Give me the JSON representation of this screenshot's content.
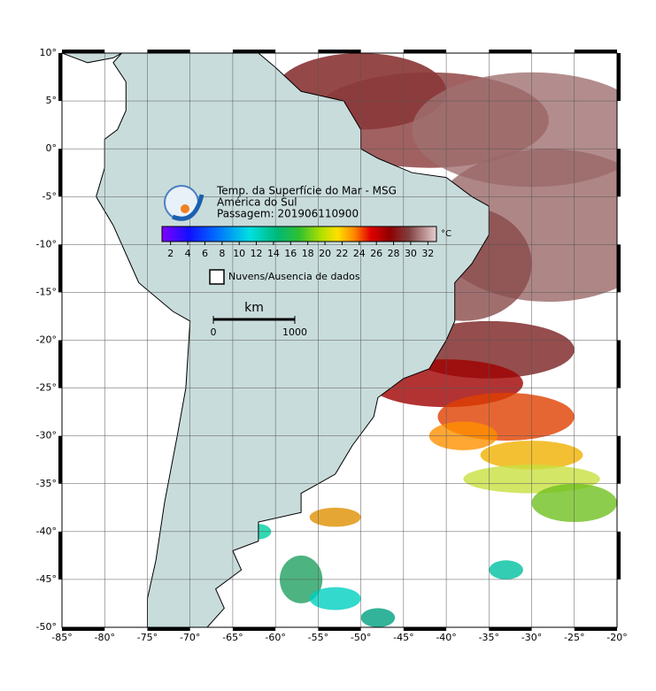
{
  "map": {
    "xlim": [
      -85,
      -20
    ],
    "ylim": [
      -50,
      10
    ],
    "xticks": [
      {
        "value": -85,
        "label": "-85°"
      },
      {
        "value": -80,
        "label": "-80°"
      },
      {
        "value": -75,
        "label": "-75°"
      },
      {
        "value": -70,
        "label": "-70°"
      },
      {
        "value": -65,
        "label": "-65°"
      },
      {
        "value": -60,
        "label": "-60°"
      },
      {
        "value": -55,
        "label": "-55°"
      },
      {
        "value": -50,
        "label": "-50°"
      },
      {
        "value": -45,
        "label": "-45°"
      },
      {
        "value": -40,
        "label": "-40°"
      },
      {
        "value": -35,
        "label": "-35°"
      },
      {
        "value": -30,
        "label": "-30°"
      },
      {
        "value": -25,
        "label": "-25°"
      },
      {
        "value": -20,
        "label": "-20°"
      }
    ],
    "yticks": [
      {
        "value": 10,
        "label": "10°"
      },
      {
        "value": 5,
        "label": "5°"
      },
      {
        "value": 0,
        "label": "0°"
      },
      {
        "value": -5,
        "label": "-5°"
      },
      {
        "value": -10,
        "label": "-10°"
      },
      {
        "value": -15,
        "label": "-15°"
      },
      {
        "value": -20,
        "label": "-20°"
      },
      {
        "value": -25,
        "label": "-25°"
      },
      {
        "value": -30,
        "label": "-30°"
      },
      {
        "value": -35,
        "label": "-35°"
      },
      {
        "value": -40,
        "label": "-40°"
      },
      {
        "value": -45,
        "label": "-45°"
      },
      {
        "value": -50,
        "label": "-50°"
      }
    ],
    "grid": true,
    "title_lines": [
      "Temp. da Superfície do Mar - MSG",
      "América do Sul",
      "Passagem: 201906110900"
    ],
    "colorbar": {
      "lim": [
        1,
        33
      ],
      "ticks": [
        2,
        4,
        6,
        8,
        10,
        12,
        14,
        16,
        18,
        20,
        22,
        24,
        26,
        28,
        30,
        32
      ],
      "unit": "°C"
    },
    "legend": "Nuvens/Ausencia de dados",
    "scale_bar": {
      "unit": "km",
      "ticks": [
        0,
        1000
      ]
    }
  }
}
